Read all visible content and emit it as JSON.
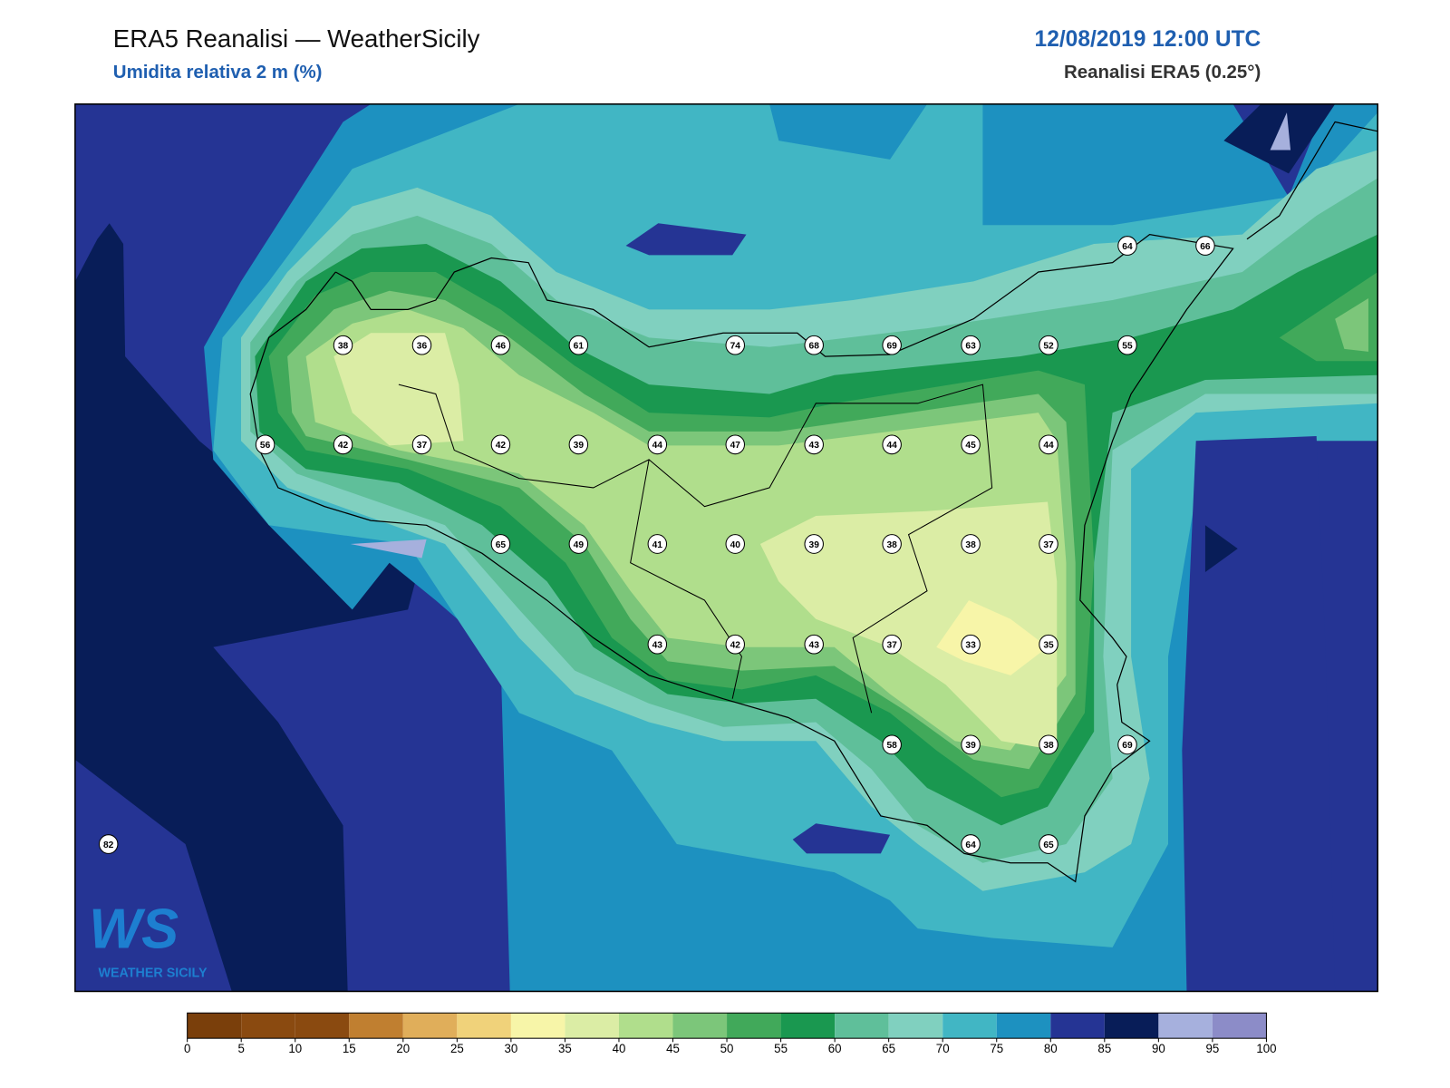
{
  "header": {
    "title": "ERA5 Reanalisi — WeatherSicily",
    "subtitle": "Umidita relativa 2 m (%)",
    "datetime": "12/08/2019 12:00 UTC",
    "source": "Reanalisi ERA5 (0.25°)"
  },
  "stations": [
    38,
    36,
    46,
    61,
    74,
    68,
    69,
    63,
    52,
    55,
    64,
    66,
    56,
    42,
    37,
    42,
    39,
    44,
    47,
    43,
    44,
    45,
    44,
    65,
    49,
    41,
    40,
    39,
    38,
    38,
    37,
    43,
    42,
    43,
    37,
    33,
    35,
    58,
    39,
    38,
    69,
    82,
    64,
    65
  ],
  "logo": {
    "mark": "WS",
    "text": "WEATHER SICILY"
  },
  "colorbar": {
    "ticks": [
      0,
      5,
      10,
      15,
      20,
      25,
      30,
      35,
      40,
      45,
      50,
      55,
      60,
      65,
      70,
      75,
      80,
      85,
      90,
      95,
      100
    ],
    "colors": [
      "#7a3f0b",
      "#8a4a10",
      "#8a4a10",
      "#c07f30",
      "#e0ae5a",
      "#f0d27a",
      "#f7f5a8",
      "#dbeda5",
      "#b0de8c",
      "#7cc67a",
      "#41a95a",
      "#1a9850",
      "#5fbf9a",
      "#80d0bf",
      "#41b6c4",
      "#1d91c0",
      "#253494",
      "#081d58",
      "#a6b0dd",
      "#8c8cc8"
    ]
  }
}
